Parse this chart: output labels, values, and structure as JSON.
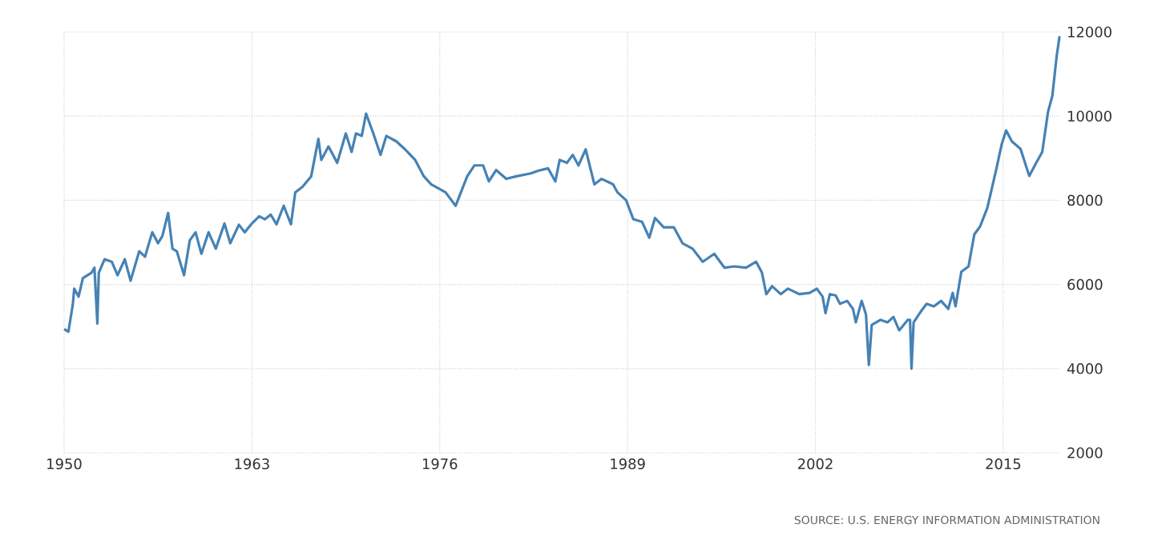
{
  "chart_data": {
    "type": "line",
    "x": [
      1950,
      1950.3,
      1950.6,
      1950.7,
      1951,
      1951.3,
      1951.9,
      1952.1,
      1952.3,
      1952.4,
      1952.8,
      1953.3,
      1953.7,
      1954.2,
      1954.6,
      1955.2,
      1955.6,
      1956.1,
      1956.5,
      1956.8,
      1957.2,
      1957.5,
      1957.8,
      1958.3,
      1958.7,
      1959.1,
      1959.5,
      1960,
      1960.5,
      1961.1,
      1961.5,
      1962.1,
      1962.5,
      1963,
      1963.5,
      1963.9,
      1964.3,
      1964.7,
      1965.2,
      1965.7,
      1966,
      1966.5,
      1967.1,
      1967.6,
      1967.8,
      1968.3,
      1968.9,
      1969.5,
      1969.9,
      1970.2,
      1970.6,
      1970.9,
      1971.4,
      1971.9,
      1972.3,
      1973,
      1973.6,
      1974.3,
      1974.9,
      1975.4,
      1976.4,
      1977.1,
      1977.9,
      1978.4,
      1979,
      1979.4,
      1979.9,
      1980.6,
      1981.3,
      1982.3,
      1982.8,
      1983.5,
      1984,
      1984.3,
      1984.8,
      1985.2,
      1985.6,
      1986.1,
      1986.7,
      1987.2,
      1988,
      1988.3,
      1988.9,
      1989.4,
      1990,
      1990.5,
      1990.9,
      1991.5,
      1992.2,
      1992.8,
      1993.5,
      1994.2,
      1995,
      1995.7,
      1996.4,
      1997.2,
      1997.9,
      1998.3,
      1998.6,
      1999,
      1999.6,
      2000.1,
      2000.9,
      2001.6,
      2002.1,
      2002.5,
      2002.7,
      2003,
      2003.4,
      2003.7,
      2004.2,
      2004.6,
      2004.8,
      2005.2,
      2005.5,
      2005.7,
      2005.9,
      2006.5,
      2007,
      2007.4,
      2007.8,
      2008.4,
      2008.55,
      2008.65,
      2008.8,
      2009.3,
      2009.7,
      2010.2,
      2010.7,
      2011.2,
      2011.5,
      2011.7,
      2012.1,
      2012.6,
      2013,
      2013.4,
      2013.9,
      2014.5,
      2014.9,
      2015.2,
      2015.6,
      2016.2,
      2016.8,
      2017.3,
      2017.7,
      2018.1,
      2018.4,
      2018.7,
      2018.9
    ],
    "series": [
      {
        "color": "#4682b4",
        "values": [
          4940,
          4880,
          5520,
          5900,
          5710,
          6150,
          6280,
          6400,
          5070,
          6280,
          6600,
          6540,
          6220,
          6600,
          6090,
          6790,
          6660,
          7240,
          6980,
          7150,
          7700,
          6850,
          6790,
          6220,
          7050,
          7240,
          6730,
          7240,
          6850,
          7450,
          6980,
          7420,
          7240,
          7450,
          7620,
          7550,
          7660,
          7430,
          7870,
          7430,
          8190,
          8320,
          8570,
          9460,
          8960,
          9280,
          8890,
          9590,
          9150,
          9590,
          9530,
          10060,
          9590,
          9080,
          9530,
          9400,
          9210,
          8960,
          8570,
          8380,
          8190,
          7870,
          8570,
          8830,
          8830,
          8450,
          8720,
          8510,
          8570,
          8640,
          8700,
          8760,
          8450,
          8960,
          8890,
          9080,
          8830,
          9210,
          8380,
          8510,
          8380,
          8190,
          8000,
          7550,
          7490,
          7110,
          7580,
          7360,
          7360,
          6980,
          6850,
          6540,
          6730,
          6400,
          6430,
          6400,
          6540,
          6280,
          5770,
          5960,
          5770,
          5900,
          5770,
          5800,
          5900,
          5710,
          5320,
          5770,
          5740,
          5540,
          5610,
          5420,
          5100,
          5610,
          5290,
          4090,
          5040,
          5160,
          5100,
          5230,
          4910,
          5160,
          5160,
          4000,
          5100,
          5360,
          5540,
          5480,
          5610,
          5420,
          5800,
          5480,
          6300,
          6430,
          7190,
          7380,
          7820,
          8710,
          9340,
          9660,
          9400,
          9220,
          8580,
          8900,
          9150,
          10100,
          10480,
          11430,
          11900
        ]
      }
    ],
    "xlim": [
      1950,
      2019
    ],
    "ylim": [
      2000,
      12000
    ],
    "xticks": [
      1950,
      1963,
      1976,
      1989,
      2002,
      2015
    ],
    "yticks": [
      2000,
      4000,
      6000,
      8000,
      10000,
      12000
    ],
    "grid": true,
    "marker": "none",
    "line_style": "solid",
    "annotations": [
      "SOURCE: U.S. ENERGY INFORMATION ADMINISTRATION"
    ]
  }
}
